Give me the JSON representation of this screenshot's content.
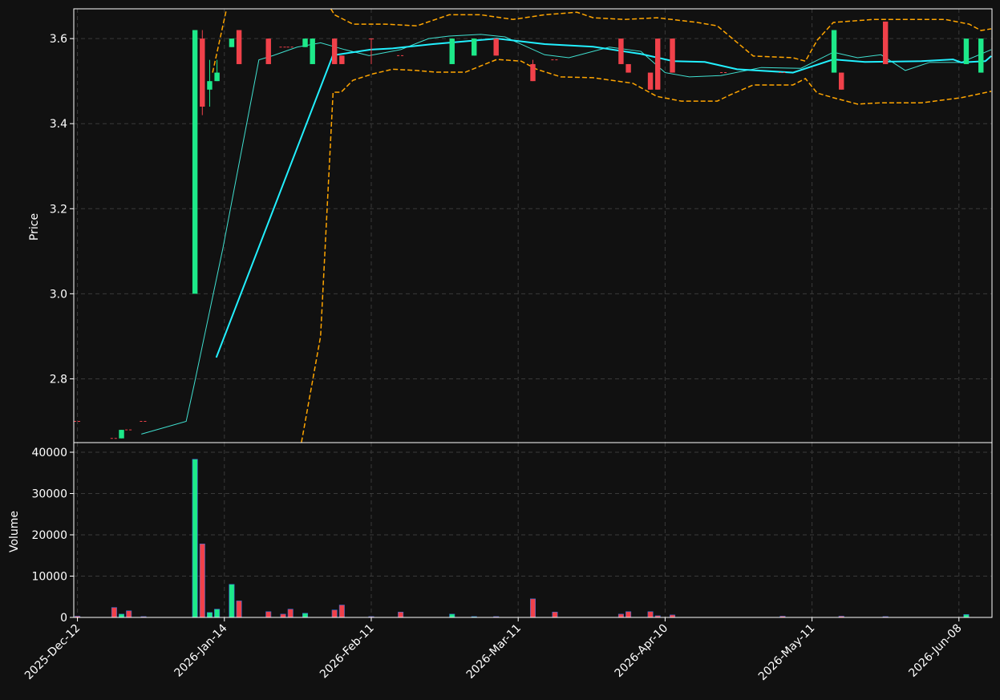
{
  "chart_data": {
    "type": "candlestick",
    "y_label": "Price",
    "volume_label": "Volume",
    "up_color": "#1de989",
    "down_color": "#f0414a",
    "grid": true,
    "xlim": [
      -0.5,
      124.5
    ],
    "xticks": [
      {
        "value": 0,
        "label": "2025-Dec-12"
      },
      {
        "value": 20,
        "label": "2026-Jan-14"
      },
      {
        "value": 40,
        "label": "2026-Feb-11"
      },
      {
        "value": 60,
        "label": "2026-Mar-11"
      },
      {
        "value": 80,
        "label": "2026-Apr-10"
      },
      {
        "value": 100,
        "label": "2026-May-11"
      },
      {
        "value": 120,
        "label": "2026-Jun-08"
      }
    ],
    "ylim": [
      2.65,
      3.67
    ],
    "yticks": [
      2.8,
      {
        "value": 3,
        "label": "3.0"
      },
      3.2,
      3.4,
      3.6
    ],
    "volume_ylim": [
      0,
      42330
    ],
    "volume_yticks": [
      0,
      10000,
      20000,
      30000,
      40000
    ],
    "x": [
      0,
      5,
      6,
      7,
      9,
      16,
      17,
      18,
      19,
      21,
      22,
      26,
      28,
      29,
      31,
      32,
      35,
      36,
      40,
      44,
      51,
      54,
      57,
      62,
      65,
      74,
      75,
      78,
      79,
      81,
      88,
      96,
      103,
      104,
      110,
      121,
      123
    ],
    "open": [
      2.7,
      2.66,
      2.66,
      2.68,
      2.7,
      3.0,
      3.6,
      3.48,
      3.5,
      3.58,
      3.62,
      3.6,
      3.58,
      3.58,
      3.58,
      3.54,
      3.6,
      3.56,
      3.6,
      3.56,
      3.54,
      3.56,
      3.6,
      3.54,
      3.55,
      3.6,
      3.54,
      3.52,
      3.6,
      3.6,
      3.52,
      3.52,
      3.52,
      3.52,
      3.64,
      3.54,
      3.52
    ],
    "high": [
      2.7,
      2.66,
      2.68,
      2.68,
      2.7,
      3.62,
      3.62,
      3.55,
      3.55,
      3.6,
      3.62,
      3.6,
      3.58,
      3.58,
      3.6,
      3.6,
      3.6,
      3.56,
      3.6,
      3.56,
      3.6,
      3.6,
      3.6,
      3.55,
      3.55,
      3.6,
      3.54,
      3.52,
      3.6,
      3.6,
      3.52,
      3.52,
      3.62,
      3.52,
      3.64,
      3.6,
      3.6
    ],
    "low": [
      2.7,
      2.66,
      2.66,
      2.68,
      2.7,
      3.0,
      3.42,
      3.44,
      3.5,
      3.58,
      3.54,
      3.54,
      3.58,
      3.58,
      3.58,
      3.54,
      3.54,
      3.54,
      3.54,
      3.56,
      3.54,
      3.56,
      3.56,
      3.5,
      3.55,
      3.54,
      3.52,
      3.48,
      3.48,
      3.52,
      3.52,
      3.52,
      3.52,
      3.48,
      3.54,
      3.54,
      3.52
    ],
    "close": [
      2.7,
      2.66,
      2.68,
      2.68,
      2.7,
      3.62,
      3.44,
      3.5,
      3.52,
      3.6,
      3.54,
      3.54,
      3.58,
      3.58,
      3.6,
      3.6,
      3.54,
      3.54,
      3.6,
      3.56,
      3.6,
      3.6,
      3.56,
      3.5,
      3.55,
      3.54,
      3.52,
      3.48,
      3.48,
      3.52,
      3.52,
      3.52,
      3.62,
      3.48,
      3.54,
      3.6,
      3.6
    ],
    "volume": [
      300,
      2400,
      800,
      1600,
      200,
      38300,
      17800,
      1200,
      2000,
      8000,
      4000,
      1400,
      800,
      2000,
      1000,
      0,
      1800,
      3000,
      200,
      1300,
      800,
      200,
      200,
      4500,
      1300,
      800,
      1400,
      1400,
      400,
      600,
      0,
      300,
      0,
      300,
      200,
      700,
      0
    ],
    "lines": [
      {
        "color": "#40e0d0",
        "width": 1,
        "dash": "none",
        "x": [
          8.7,
          14.8,
          15.9,
          19.8,
          24.7,
          26.6,
          29.9,
          33.1,
          36.4,
          39.7,
          44,
          47.8,
          50.6,
          54.9,
          58.2,
          63.6,
          66.9,
          72.4,
          76.7,
          80,
          83.3,
          87.6,
          93.1,
          98.5,
          102.9,
          106.2,
          109.4,
          112.7,
          116,
          120.3,
          124.4
        ],
        "values": [
          2.67,
          2.7,
          2.787,
          3.107,
          3.55,
          3.56,
          3.58,
          3.59,
          3.574,
          3.56,
          3.574,
          3.6,
          3.606,
          3.61,
          3.604,
          3.562,
          3.555,
          3.58,
          3.57,
          3.52,
          3.51,
          3.513,
          3.532,
          3.53,
          3.568,
          3.555,
          3.562,
          3.525,
          3.544,
          3.544,
          3.574
        ]
      },
      {
        "color": "#22f0ff",
        "width": 2,
        "dash": "none",
        "x": [
          18.9,
          34.8,
          35.3,
          39.9,
          42.9,
          48.4,
          57.1,
          63.6,
          70.2,
          76.7,
          81.1,
          85.4,
          89.8,
          97.4,
          102.9,
          107.2,
          114.9,
          119.2,
          120.3,
          123.6,
          124.4
        ],
        "values": [
          2.85,
          3.562,
          3.562,
          3.574,
          3.577,
          3.587,
          3.6,
          3.587,
          3.581,
          3.564,
          3.547,
          3.545,
          3.528,
          3.52,
          3.551,
          3.545,
          3.547,
          3.551,
          3.544,
          3.547,
          3.559
        ]
      },
      {
        "color": "#ffa500",
        "width": 1.5,
        "dash": "6 3",
        "x": [
          18.4,
          20.3,
          27,
          34.5,
          35,
          37.5,
          41.9,
          46.2,
          50.6,
          54.9,
          59.3,
          63.6,
          68,
          70.2,
          74.5,
          78.9,
          84.4,
          87.1,
          92,
          97.4,
          99.1,
          100.7,
          102.9,
          108.3,
          118.1,
          121.4,
          123,
          124.4
        ],
        "values": [
          3.52,
          3.67,
          null,
          3.67,
          3.656,
          3.634,
          3.634,
          3.63,
          3.656,
          3.656,
          3.645,
          3.656,
          3.662,
          3.649,
          3.645,
          3.649,
          3.638,
          3.63,
          3.559,
          3.555,
          3.547,
          3.596,
          3.638,
          3.645,
          3.645,
          3.634,
          3.619,
          3.623
        ]
      },
      {
        "color": "#ffa500",
        "width": 1.5,
        "dash": "6 3",
        "x": [
          30.5,
          33.1,
          34.8,
          35.9,
          37.5,
          40.2,
          42.9,
          46.2,
          48.9,
          52.8,
          57.1,
          60.4,
          62.5,
          65.8,
          70.2,
          75.6,
          78.9,
          82.2,
          87.1,
          88.9,
          92,
          97.4,
          99.1,
          100.7,
          102.9,
          106.2,
          109.4,
          114.9,
          120.3,
          124.4
        ],
        "values": [
          2.651,
          2.9,
          3.474,
          3.474,
          3.502,
          3.517,
          3.528,
          3.525,
          3.521,
          3.521,
          3.551,
          3.547,
          3.528,
          3.51,
          3.508,
          3.495,
          3.464,
          3.453,
          3.453,
          3.468,
          3.491,
          3.491,
          3.506,
          3.472,
          3.461,
          3.446,
          3.449,
          3.449,
          3.461,
          3.476
        ]
      }
    ]
  }
}
